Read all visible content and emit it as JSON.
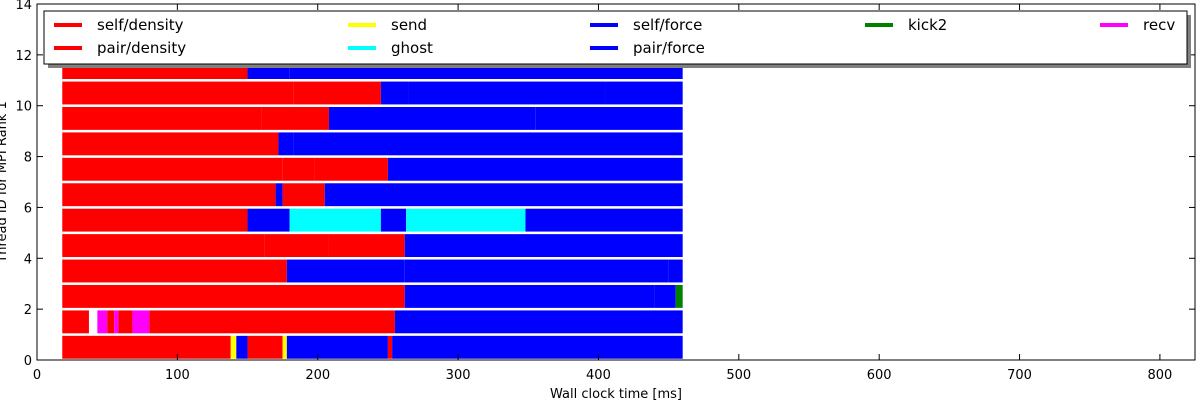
{
  "chart_data": {
    "type": "bar",
    "subtype": "horizontal-timeline",
    "xlabel": "Wall clock time [ms]",
    "ylabel": "Thread ID for MPI Rank 1",
    "xlim": [
      0,
      825
    ],
    "ylim": [
      0,
      14
    ],
    "xticks": [
      0,
      100,
      200,
      300,
      400,
      500,
      600,
      700,
      800
    ],
    "yticks": [
      0,
      2,
      4,
      6,
      8,
      10,
      12,
      14
    ],
    "legend_position": "top",
    "legend": [
      {
        "name": "self/density",
        "color": "#ff0000"
      },
      {
        "name": "pair/density",
        "color": "#ff0000"
      },
      {
        "name": "send",
        "color": "#ffff00"
      },
      {
        "name": "ghost",
        "color": "#00ffff"
      },
      {
        "name": "self/force",
        "color": "#0000ff"
      },
      {
        "name": "pair/force",
        "color": "#0000ff"
      },
      {
        "name": "kick2",
        "color": "#008000"
      },
      {
        "name": "recv",
        "color": "#ff00ff"
      }
    ],
    "threads": [
      {
        "thread": 0,
        "segments": [
          [
            18,
            138,
            "#ff0000"
          ],
          [
            138,
            142,
            "#ffff00"
          ],
          [
            142,
            150,
            "#0000ff"
          ],
          [
            150,
            175,
            "#ff0000"
          ],
          [
            175,
            178,
            "#ffff00"
          ],
          [
            178,
            250,
            "#0000ff"
          ],
          [
            250,
            253,
            "#ff0000"
          ],
          [
            253,
            460,
            "#0000ff"
          ]
        ]
      },
      {
        "thread": 1,
        "segments": [
          [
            18,
            37,
            "#ff0000"
          ],
          [
            43,
            50,
            "#ff00ff"
          ],
          [
            50,
            55,
            "#ff0000"
          ],
          [
            55,
            58,
            "#ff00ff"
          ],
          [
            58,
            68,
            "#ff0000"
          ],
          [
            68,
            80,
            "#ff00ff"
          ],
          [
            80,
            255,
            "#ff0000"
          ],
          [
            255,
            460,
            "#0000ff"
          ]
        ]
      },
      {
        "thread": 2,
        "segments": [
          [
            18,
            262,
            "#ff0000"
          ],
          [
            262,
            440,
            "#0000ff"
          ],
          [
            440,
            455,
            "#0000ff"
          ],
          [
            455,
            460,
            "#008000"
          ]
        ]
      },
      {
        "thread": 3,
        "segments": [
          [
            18,
            178,
            "#ff0000"
          ],
          [
            178,
            262,
            "#0000ff"
          ],
          [
            262,
            450,
            "#0000ff"
          ],
          [
            450,
            460,
            "#0000ff"
          ]
        ]
      },
      {
        "thread": 4,
        "segments": [
          [
            18,
            162,
            "#ff0000"
          ],
          [
            162,
            208,
            "#ff0000"
          ],
          [
            208,
            262,
            "#ff0000"
          ],
          [
            262,
            460,
            "#0000ff"
          ]
        ]
      },
      {
        "thread": 5,
        "segments": [
          [
            18,
            150,
            "#ff0000"
          ],
          [
            150,
            180,
            "#0000ff"
          ],
          [
            180,
            245,
            "#00ffff"
          ],
          [
            245,
            263,
            "#0000ff"
          ],
          [
            263,
            348,
            "#00ffff"
          ],
          [
            348,
            460,
            "#0000ff"
          ]
        ]
      },
      {
        "thread": 6,
        "segments": [
          [
            18,
            170,
            "#ff0000"
          ],
          [
            170,
            175,
            "#0000ff"
          ],
          [
            175,
            205,
            "#ff0000"
          ],
          [
            205,
            460,
            "#0000ff"
          ]
        ]
      },
      {
        "thread": 7,
        "segments": [
          [
            18,
            175,
            "#ff0000"
          ],
          [
            175,
            198,
            "#ff0000"
          ],
          [
            198,
            250,
            "#ff0000"
          ],
          [
            250,
            460,
            "#0000ff"
          ]
        ]
      },
      {
        "thread": 8,
        "segments": [
          [
            18,
            172,
            "#ff0000"
          ],
          [
            172,
            183,
            "#0000ff"
          ],
          [
            183,
            460,
            "#0000ff"
          ]
        ]
      },
      {
        "thread": 9,
        "segments": [
          [
            18,
            160,
            "#ff0000"
          ],
          [
            160,
            208,
            "#ff0000"
          ],
          [
            208,
            355,
            "#0000ff"
          ],
          [
            355,
            460,
            "#0000ff"
          ]
        ]
      },
      {
        "thread": 10,
        "segments": [
          [
            18,
            183,
            "#ff0000"
          ],
          [
            183,
            245,
            "#ff0000"
          ],
          [
            245,
            265,
            "#0000ff"
          ],
          [
            265,
            405,
            "#0000ff"
          ],
          [
            405,
            460,
            "#0000ff"
          ]
        ]
      },
      {
        "thread": 11,
        "segments": [
          [
            18,
            150,
            "#ff0000"
          ],
          [
            150,
            180,
            "#0000ff"
          ],
          [
            180,
            460,
            "#0000ff"
          ]
        ]
      }
    ]
  }
}
